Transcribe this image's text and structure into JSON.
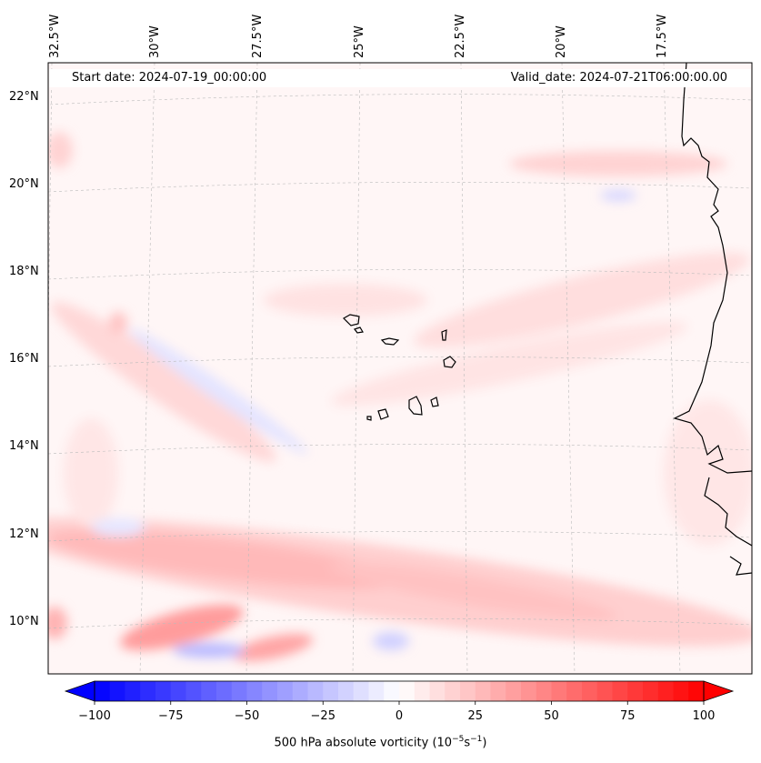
{
  "map": {
    "start_date": "Start date: 2024-07-19_00:00:00",
    "valid_date": "Valid_date: 2024-07-21T06:00:00.00",
    "lon_labels": [
      "32.5°W",
      "30°W",
      "27.5°W",
      "25°W",
      "22.5°W",
      "20°W",
      "17.5°W"
    ],
    "lat_labels": [
      "22°N",
      "20°N",
      "18°N",
      "16°N",
      "14°N",
      "12°N",
      "10°N"
    ],
    "colorbar": {
      "label": "500 hPa absolute vorticity (10",
      "label_exp1": "−5",
      "label_mid": "s",
      "label_exp2": "−1",
      "label_end": ")",
      "ticks": [
        "−100",
        "−75",
        "−50",
        "−25",
        "0",
        "25",
        "50",
        "75",
        "100"
      ],
      "min": -100,
      "max": 100,
      "low_color": "#0000ff",
      "high_color": "#ff0000"
    },
    "colors": {
      "land_line": "#000000",
      "grid": "#bbbbbb",
      "background": "#fff6f6"
    }
  }
}
